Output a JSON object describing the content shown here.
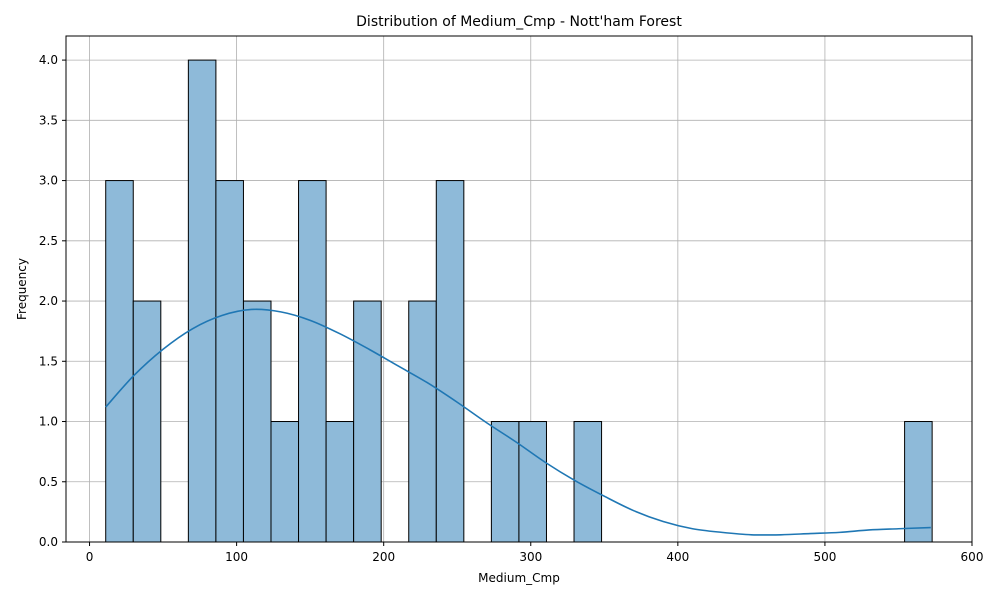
{
  "chart_data": {
    "type": "bar",
    "title": "Distribution of Medium_Cmp - Nott'ham Forest",
    "xlabel": "Medium_Cmp",
    "ylabel": "Frequency",
    "xlim": [
      -16,
      600
    ],
    "ylim": [
      0,
      4.2
    ],
    "xticks": [
      0,
      100,
      200,
      300,
      400,
      500,
      600
    ],
    "xtick_labels": [
      "0",
      "100",
      "200",
      "300",
      "400",
      "500",
      "600"
    ],
    "yticks": [
      0,
      0.5,
      1,
      1.5,
      2,
      2.5,
      3,
      3.5,
      4
    ],
    "ytick_labels": [
      "0.0",
      "0.5",
      "1.0",
      "1.5",
      "2.0",
      "2.5",
      "3.0",
      "3.5",
      "4.0"
    ],
    "grid": true,
    "bar_color": "#8ebad9",
    "bar_edge_color": "#000000",
    "kde_color": "#1f77b4",
    "bins": {
      "start": 11,
      "width": 18.73,
      "counts": [
        3,
        2,
        0,
        4,
        3,
        2,
        1,
        3,
        1,
        2,
        0,
        2,
        3,
        0,
        1,
        1,
        0,
        1,
        0,
        0,
        0,
        0,
        0,
        0,
        0,
        0,
        0,
        0,
        0,
        1
      ]
    },
    "kde": {
      "x": [
        11,
        30,
        50,
        70,
        90,
        110,
        130,
        150,
        170,
        190,
        210,
        230,
        250,
        270,
        290,
        310,
        330,
        350,
        370,
        390,
        410,
        430,
        450,
        470,
        490,
        510,
        530,
        550,
        572
      ],
      "y": [
        1.12,
        1.38,
        1.6,
        1.77,
        1.88,
        1.93,
        1.91,
        1.84,
        1.73,
        1.6,
        1.46,
        1.32,
        1.16,
        0.99,
        0.83,
        0.66,
        0.51,
        0.38,
        0.26,
        0.17,
        0.11,
        0.08,
        0.06,
        0.06,
        0.07,
        0.08,
        0.1,
        0.11,
        0.12
      ]
    }
  }
}
